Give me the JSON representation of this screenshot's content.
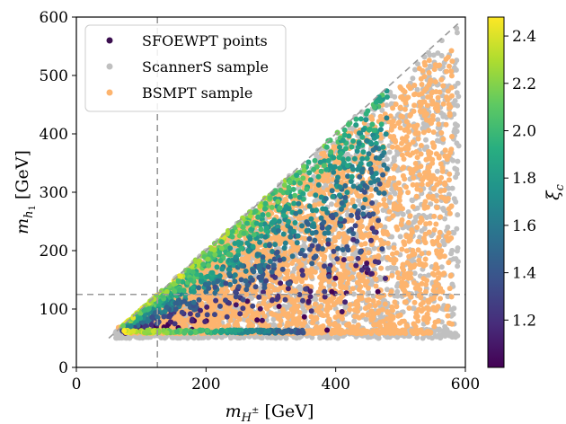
{
  "chart_data": {
    "type": "scatter",
    "xlabel": "m_{H^±} [GeV]",
    "ylabel": "m_{h_1} [GeV]",
    "xlim": [
      0,
      600
    ],
    "ylim": [
      0,
      600
    ],
    "xticks": [
      "0",
      "200",
      "400",
      "600"
    ],
    "yticks": [
      "0",
      "100",
      "200",
      "300",
      "400",
      "500",
      "600"
    ],
    "grid": false,
    "legend_position": "top-left",
    "legend": [
      {
        "label": "SFOEWPT points",
        "color": "#3b0f4f"
      },
      {
        "label": "ScannerS sample",
        "color": "#c0c0c0"
      },
      {
        "label": "BSMPT sample",
        "color": "#fdb46e"
      }
    ],
    "colorbar": {
      "label": "ξ_c",
      "range": [
        1.0,
        2.48
      ],
      "ticks": [
        "1.2",
        "1.4",
        "1.6",
        "1.8",
        "2.0",
        "2.2",
        "2.4"
      ],
      "colormap": "viridis"
    },
    "reference_lines": {
      "diagonal": {
        "from": [
          50,
          50
        ],
        "to": [
          590,
          590
        ],
        "style": "dashed",
        "color": "#999999"
      },
      "vertical_x": 125,
      "horizontal_y": 125
    },
    "regions": {
      "scanners": {
        "m_hpm": [
          60,
          590
        ],
        "upper": "m_h1 <= m_hpm",
        "lower_band": 50
      },
      "bsmpt": {
        "m_hpm": [
          65,
          580
        ],
        "upper": "m_h1 <= 0.98 m_hpm",
        "lower_band": 60
      }
    },
    "series": [
      {
        "name": "SFOEWPT points",
        "x_range": [
          65,
          480
        ],
        "y_range": [
          55,
          440
        ],
        "xi_c_range": [
          1.0,
          2.48
        ]
      }
    ]
  }
}
